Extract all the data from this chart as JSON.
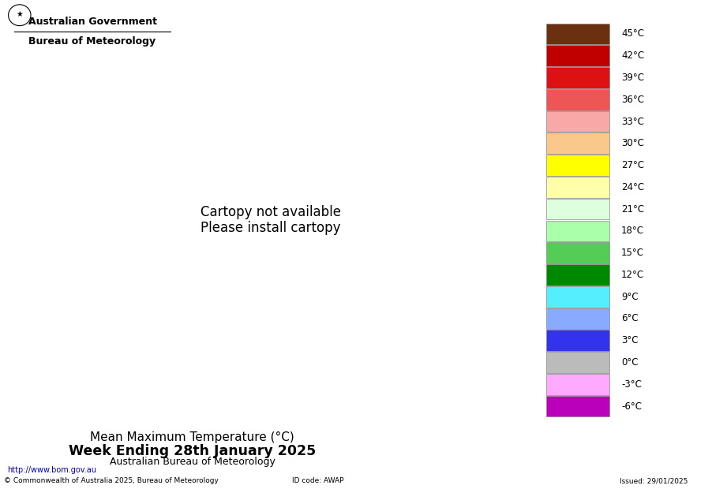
{
  "title_line1": "Mean Maximum Temperature (°C)",
  "title_line2": "Week Ending 28th January 2025",
  "title_line3": "Australian Bureau of Meteorology",
  "header_line1": "Australian Government",
  "header_line2": "Bureau of Meteorology",
  "footer_left": "http://www.bom.gov.au",
  "footer_copyright": "© Commonwealth of Australia 2025, Bureau of Meteorology",
  "footer_id": "ID code: AWAP",
  "footer_issued": "Issued: 29/01/2025",
  "legend_labels": [
    "45°C",
    "42°C",
    "39°C",
    "36°C",
    "33°C",
    "30°C",
    "27°C",
    "24°C",
    "21°C",
    "18°C",
    "15°C",
    "12°C",
    "9°C",
    "6°C",
    "3°C",
    "0°C",
    "-3°C",
    "-6°C"
  ],
  "legend_colors": [
    "#6B3010",
    "#C00000",
    "#DD1111",
    "#EE5555",
    "#F9A8A8",
    "#F9C88A",
    "#FFFF00",
    "#FFFFAA",
    "#DDFFDD",
    "#AAFFAA",
    "#55CC55",
    "#008800",
    "#55EEFF",
    "#88AAFF",
    "#3333EE",
    "#BBBBBB",
    "#FFAAFF",
    "#BB00BB"
  ],
  "background_color": "#FFFFFF",
  "map_extent": [
    112,
    154,
    -44,
    -9
  ],
  "temp_levels": [
    -6,
    -3,
    0,
    3,
    6,
    9,
    12,
    15,
    18,
    21,
    24,
    27,
    30,
    33,
    36,
    39,
    42,
    45,
    50
  ],
  "contour_colors": [
    "#BB00BB",
    "#FF66FF",
    "#CCCCCC",
    "#4444EE",
    "#99AAFF",
    "#55EEFF",
    "#008800",
    "#55CC55",
    "#AAFFAA",
    "#DDFFDD",
    "#FFFFAA",
    "#FFFF00",
    "#F9C88A",
    "#F9A8A8",
    "#EE5555",
    "#DD1111",
    "#C00000",
    "#6B3010"
  ]
}
